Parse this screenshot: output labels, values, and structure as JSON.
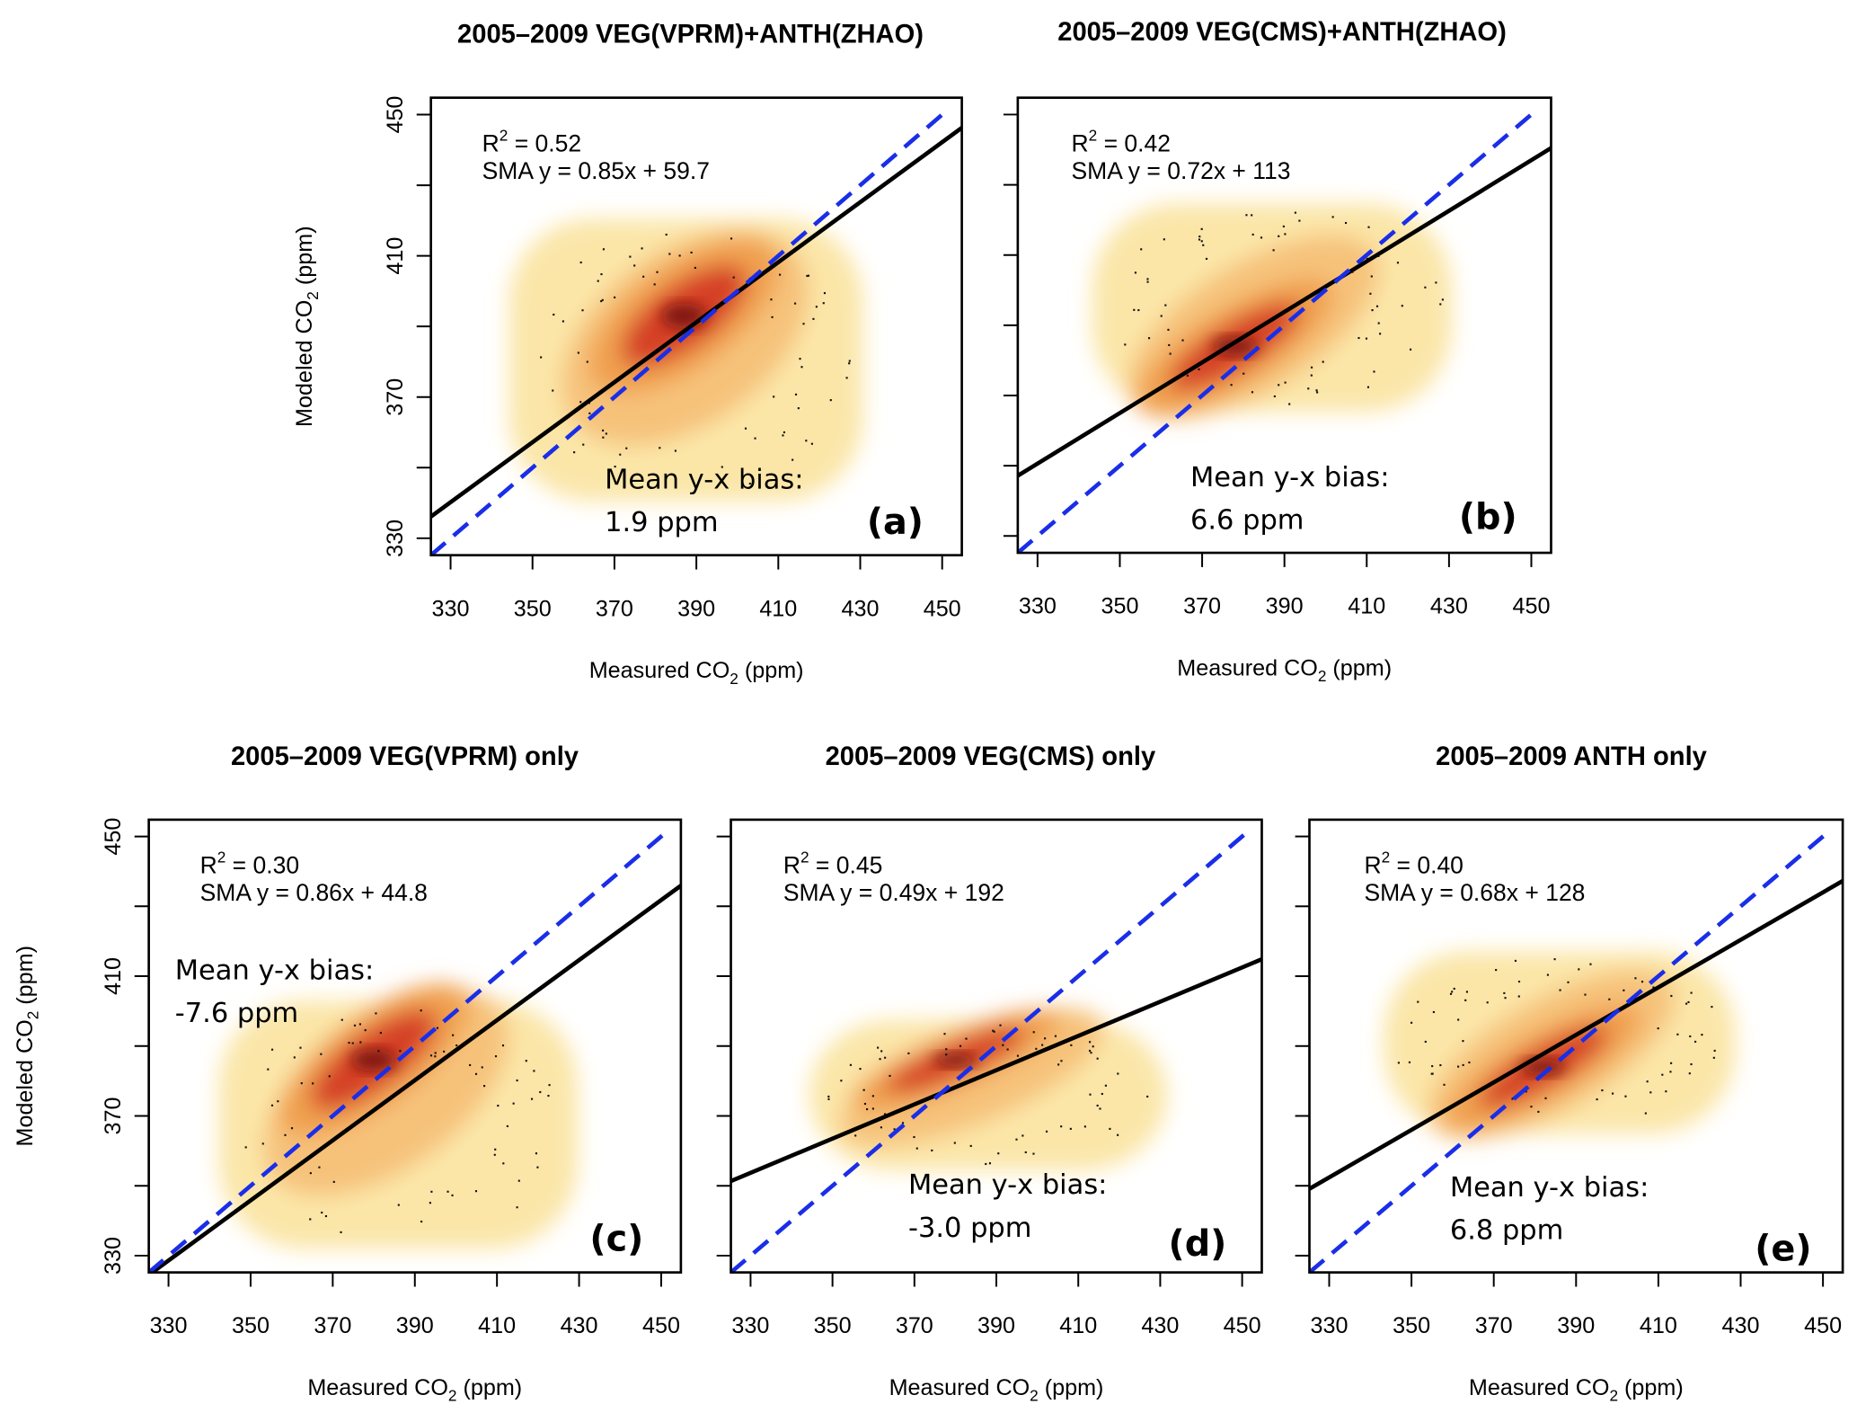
{
  "chart_data": [
    {
      "type": "scatter",
      "panel_label": "(a)",
      "title": "2005–2009 VEG(VPRM)+ANTH(ZHAO)",
      "xlabel": [
        "Measured CO",
        "2",
        " (ppm)"
      ],
      "ylabel": [
        "Modeled CO",
        "2",
        " (ppm)"
      ],
      "show_yticklabels": true,
      "xlim": [
        325.2,
        454.8
      ],
      "ylim": [
        325.2,
        454.8
      ],
      "xticks": [
        330,
        350,
        370,
        390,
        410,
        430,
        450
      ],
      "yticks": [
        330,
        350,
        370,
        390,
        410,
        430,
        450
      ],
      "yticklabels": [
        "330",
        "",
        "370",
        "",
        "410",
        "",
        "450"
      ],
      "r2_label": "R",
      "r2_sup": "2",
      "r2_text": " = 0.52",
      "sma_text": "SMA y = 0.85x + 59.7",
      "sma": {
        "slope": 0.85,
        "intercept": 59.7
      },
      "one_to_one": {
        "slope": 1,
        "intercept": 0
      },
      "bias_label": "Mean y-x bias:",
      "bias_value": "1.9 ppm",
      "density": {
        "xrange": [
          342,
          433
        ],
        "yrange": [
          336,
          425
        ],
        "peak": [
          387,
          393
        ]
      }
    },
    {
      "type": "scatter",
      "panel_label": "(b)",
      "title": "2005–2009 VEG(CMS)+ANTH(ZHAO)",
      "xlabel": [
        "Measured CO",
        "2",
        " (ppm)"
      ],
      "ylabel": [
        "Modeled CO",
        "2",
        " (ppm)"
      ],
      "show_yticklabels": false,
      "xlim": [
        325.2,
        454.8
      ],
      "ylim": [
        325.2,
        454.8
      ],
      "xticks": [
        330,
        350,
        370,
        390,
        410,
        430,
        450
      ],
      "yticks": [
        330,
        350,
        370,
        390,
        410,
        430,
        450
      ],
      "yticklabels": [
        "",
        "",
        "",
        "",
        "",
        "",
        ""
      ],
      "r2_label": "R",
      "r2_sup": "2",
      "r2_text": " = 0.42",
      "sma_text": "SMA y = 0.72x + 113",
      "sma": {
        "slope": 0.72,
        "intercept": 113
      },
      "one_to_one": {
        "slope": 1,
        "intercept": 0
      },
      "bias_label": "Mean y-x bias:",
      "bias_value": "6.6 ppm",
      "density": {
        "xrange": [
          341,
          433
        ],
        "yrange": [
          362,
          428
        ],
        "peak": [
          378,
          384
        ]
      }
    },
    {
      "type": "scatter",
      "panel_label": "(c)",
      "title": "2005–2009 VEG(VPRM) only",
      "xlabel": [
        "Measured CO",
        "2",
        " (ppm)"
      ],
      "ylabel": [
        "Modeled CO",
        "2",
        " (ppm)"
      ],
      "show_yticklabels": true,
      "xlim": [
        325.2,
        454.8
      ],
      "ylim": [
        325.2,
        454.8
      ],
      "xticks": [
        330,
        350,
        370,
        390,
        410,
        430,
        450
      ],
      "yticks": [
        330,
        350,
        370,
        390,
        410,
        430,
        450
      ],
      "yticklabels": [
        "330",
        "",
        "370",
        "",
        "410",
        "",
        "450"
      ],
      "r2_label": "R",
      "r2_sup": "2",
      "r2_text": " = 0.30",
      "sma_text": "SMA y = 0.86x + 44.8",
      "sma": {
        "slope": 0.86,
        "intercept": 44.8
      },
      "one_to_one": {
        "slope": 1,
        "intercept": 0
      },
      "bias_label": "Mean y-x bias:",
      "bias_value": "-7.6 ppm",
      "density": {
        "xrange": [
          340,
          432
        ],
        "yrange": [
          328,
          407
        ],
        "peak": [
          380,
          386
        ]
      }
    },
    {
      "type": "scatter",
      "panel_label": "(d)",
      "title": "2005–2009 VEG(CMS) only",
      "xlabel": [
        "Measured CO",
        "2",
        " (ppm)"
      ],
      "ylabel": [
        "Modeled CO",
        "2",
        " (ppm)"
      ],
      "show_yticklabels": false,
      "xlim": [
        325.2,
        454.8
      ],
      "ylim": [
        325.2,
        454.8
      ],
      "xticks": [
        330,
        350,
        370,
        390,
        410,
        430,
        450
      ],
      "yticks": [
        330,
        350,
        370,
        390,
        410,
        430,
        450
      ],
      "yticklabels": [
        "",
        "",
        "",
        "",
        "",
        "",
        ""
      ],
      "r2_label": "R",
      "r2_sup": "2",
      "r2_text": " = 0.45",
      "sma_text": "SMA y = 0.49x + 192",
      "sma": {
        "slope": 0.49,
        "intercept": 192
      },
      "one_to_one": {
        "slope": 1,
        "intercept": 0
      },
      "bias_label": "Mean y-x bias:",
      "bias_value": "-3.0 ppm",
      "density": {
        "xrange": [
          342,
          434
        ],
        "yrange": [
          352,
          400
        ],
        "peak": [
          380,
          386
        ]
      }
    },
    {
      "type": "scatter",
      "panel_label": "(e)",
      "title": "2005–2009 ANTH only",
      "xlabel": [
        "Measured CO",
        "2",
        " (ppm)"
      ],
      "ylabel": [
        "Modeled CO",
        "2",
        " (ppm)"
      ],
      "show_yticklabels": false,
      "xlim": [
        325.2,
        454.8
      ],
      "ylim": [
        325.2,
        454.8
      ],
      "xticks": [
        330,
        350,
        370,
        390,
        410,
        430,
        450
      ],
      "yticks": [
        330,
        350,
        370,
        390,
        410,
        430,
        450
      ],
      "yticklabels": [
        "",
        "",
        "",
        "",
        "",
        "",
        ""
      ],
      "r2_label": "R",
      "r2_sup": "2",
      "r2_text": " = 0.40",
      "sma_text": "SMA y = 0.68x + 128",
      "sma": {
        "slope": 0.68,
        "intercept": 128
      },
      "one_to_one": {
        "slope": 1,
        "intercept": 0
      },
      "bias_label": "Mean y-x bias:",
      "bias_value": "6.8 ppm",
      "density": {
        "xrange": [
          341,
          431
        ],
        "yrange": [
          362,
          420
        ],
        "peak": [
          382,
          384
        ]
      }
    }
  ],
  "colors": {
    "sma_line": "#000000",
    "one_to_one_line": "#1a2ee8",
    "density_low": "#fbe6a8",
    "density_mid": "#f0a050",
    "density_high": "#d03020",
    "density_peak": "#6a0a0a"
  }
}
